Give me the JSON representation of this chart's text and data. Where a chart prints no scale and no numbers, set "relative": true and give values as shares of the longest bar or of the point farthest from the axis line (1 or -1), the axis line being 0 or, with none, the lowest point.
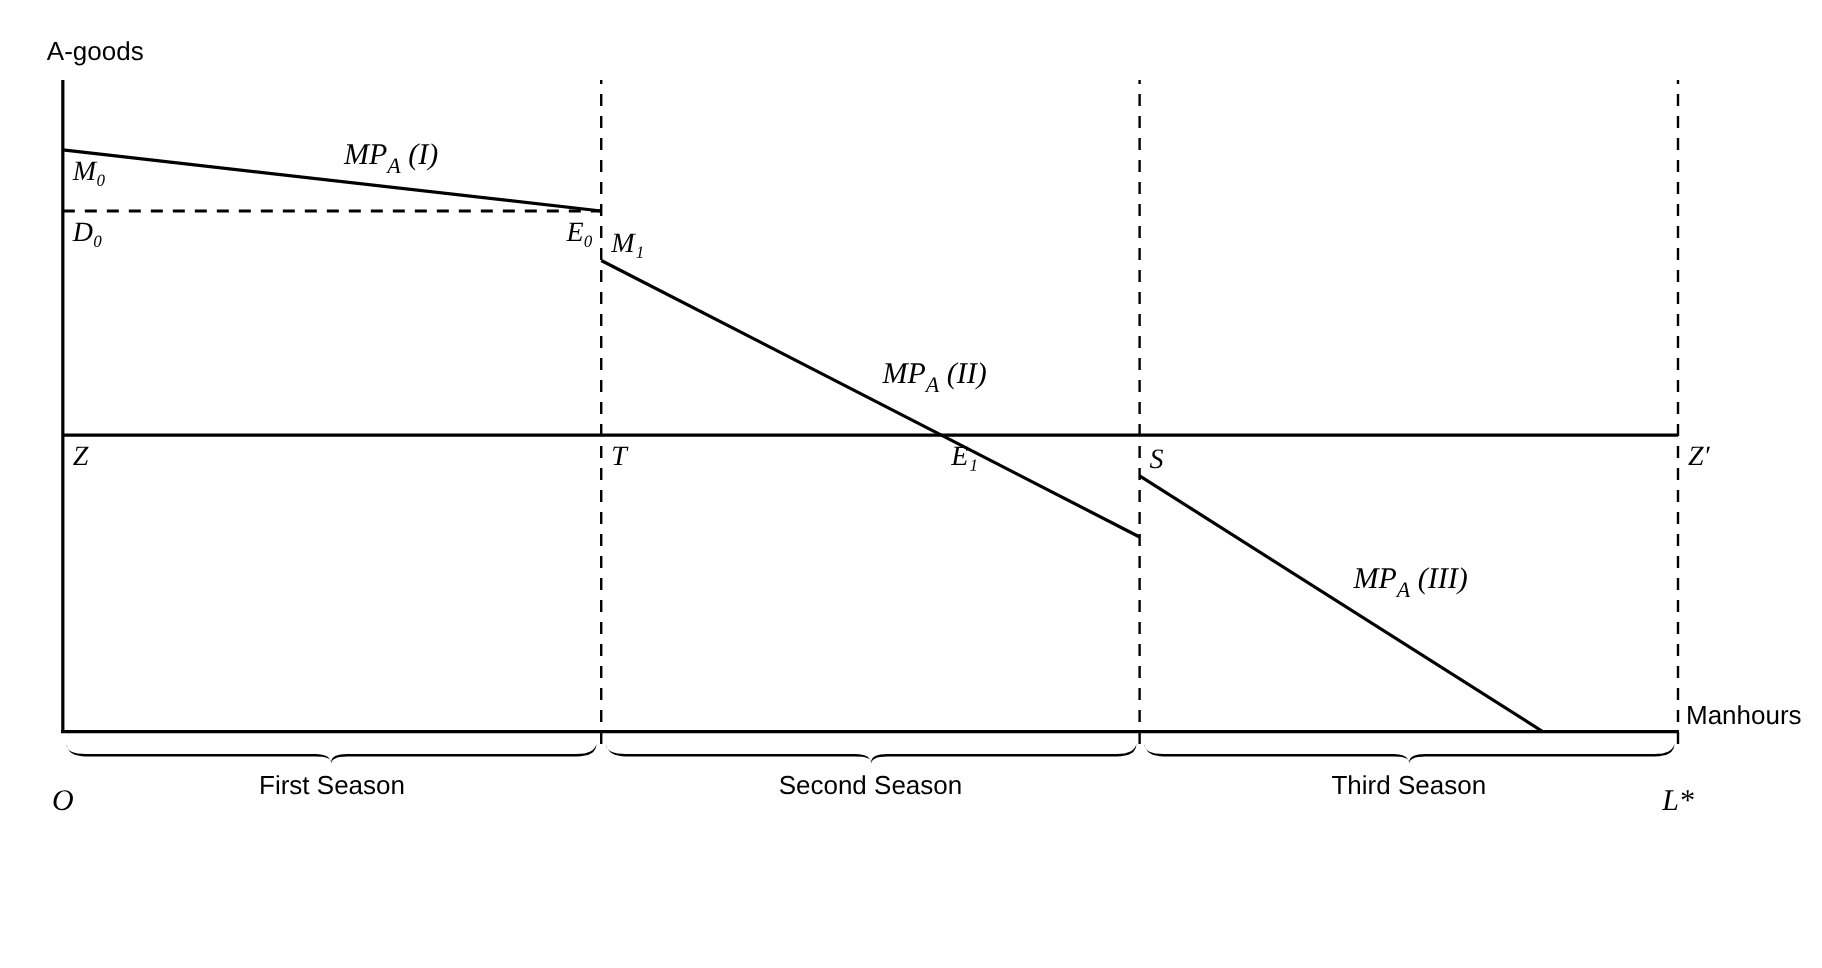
{
  "chart_data": {
    "type": "line",
    "relative": true,
    "xlabel": "Manhours",
    "ylabel": "A-goods",
    "tick_labels": "x",
    "grid": false,
    "legend": false,
    "categories": [
      "O",
      null,
      null,
      null,
      null,
      null,
      null,
      null,
      null,
      null,
      null,
      null,
      "L*"
    ],
    "series": [
      {
        "name": "MP$_{A}$ (I)",
        "color": "#000000",
        "values": [
          1,
          null,
          null,
          null,
          0.895,
          null,
          null,
          null,
          null,
          null,
          null,
          null,
          null
        ]
      },
      {
        "name": "MP$_{A}$ (II)",
        "color": "#000000",
        "values": [
          null,
          null,
          null,
          null,
          0.81,
          null,
          null,
          null,
          0.335,
          null,
          null,
          null,
          null
        ]
      },
      {
        "name": "MP$_{A}$ (III)",
        "color": "#000000",
        "values": [
          null,
          null,
          null,
          null,
          null,
          null,
          null,
          null,
          0.44,
          null,
          null,
          0,
          null
        ]
      },
      {
        "color": "#000000",
        "values": [
          0.51,
          null,
          null,
          null,
          null,
          null,
          null,
          null,
          null,
          null,
          null,
          null,
          0.51
        ]
      },
      {
        "color": "#000000",
        "line_style": "dashed",
        "values": [
          0.895,
          null,
          null,
          null,
          0.895,
          null,
          null,
          null,
          null,
          null,
          null,
          null,
          null
        ]
      }
    ],
    "annotations": [
      {
        "text": "M₀",
        "x": "O",
        "y": 1
      },
      {
        "text": "D₀",
        "x": "O",
        "y": 0.895
      },
      "E₀",
      "M₁",
      {
        "text": "Z",
        "x": "O",
        "y": 0.51
      },
      {
        "text": "T",
        "y": 0.51
      },
      {
        "text": "E₁",
        "y": 0.51
      },
      {
        "text": "S",
        "y": 0.44
      },
      {
        "text": "Z′",
        "x": "L*",
        "y": 0.51
      },
      {
        "text": "First Season"
      },
      {
        "text": "Second Season"
      },
      {
        "text": "Third Season"
      }
    ]
  }
}
